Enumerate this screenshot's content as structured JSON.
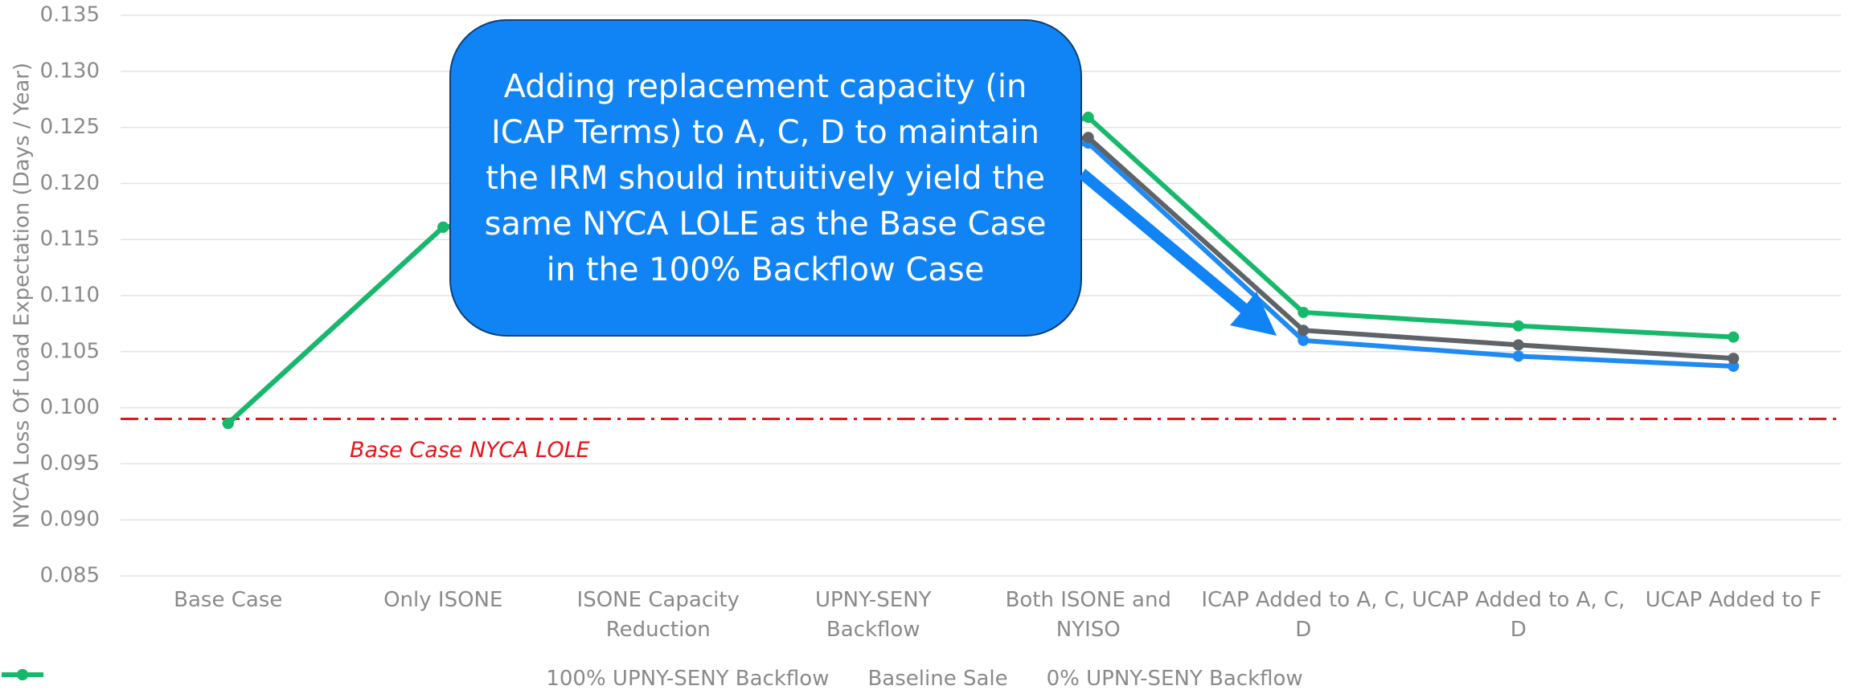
{
  "chart_data": {
    "type": "line",
    "y_label": "NYCA Loss Of Load Expectation (Days / Year)",
    "categories": [
      "Base Case",
      "Only ISONE",
      "ISONE Capacity Reduction",
      "UPNY-SENY Backflow",
      "Both ISONE and NYISO",
      "ICAP Added to A, C, D",
      "UCAP Added to A, C, D",
      "UCAP Added to F"
    ],
    "series": [
      {
        "name": "100% UPNY-SENY Backflow",
        "color": "#1f8bf2",
        "values": [
          0.0986,
          0.1161,
          0.118,
          0.121,
          0.1236,
          0.106,
          0.1046,
          0.1037
        ]
      },
      {
        "name": "Baseline Sale",
        "color": "#5f6368",
        "values": [
          0.0986,
          0.1161,
          0.118,
          0.121,
          0.1241,
          0.1069,
          0.1056,
          0.1044
        ]
      },
      {
        "name": "0% UPNY-SENY Backflow",
        "color": "#16b96b",
        "values": [
          0.0986,
          0.1161,
          0.118,
          0.121,
          0.1259,
          0.1085,
          0.1073,
          0.1063
        ]
      }
    ],
    "ylim": [
      0.085,
      0.135
    ],
    "yticks": [
      {
        "value": 0.085,
        "label": "0.085"
      },
      {
        "value": 0.09,
        "label": "0.090"
      },
      {
        "value": 0.095,
        "label": "0.095"
      },
      {
        "value": 0.1,
        "label": "0.100"
      },
      {
        "value": 0.105,
        "label": "0.105"
      },
      {
        "value": 0.11,
        "label": "0.110"
      },
      {
        "value": 0.115,
        "label": "0.115"
      },
      {
        "value": 0.12,
        "label": "0.120"
      },
      {
        "value": 0.125,
        "label": "0.125"
      },
      {
        "value": 0.13,
        "label": "0.130"
      },
      {
        "value": 0.135,
        "label": "0.135"
      }
    ],
    "grid": true,
    "legend": "bottom",
    "reference": {
      "value": 0.099,
      "label": "Base Case NYCA LOLE",
      "color": "#e8141b"
    },
    "annotation": {
      "lines": [
        "Adding replacement capacity (in",
        "ICAP Terms) to A, C, D to maintain",
        "the IRM should intuitively yield the",
        "same NYCA LOLE as the Base Case",
        "in the 100% Backflow Case"
      ],
      "color": "#1184f5"
    }
  }
}
